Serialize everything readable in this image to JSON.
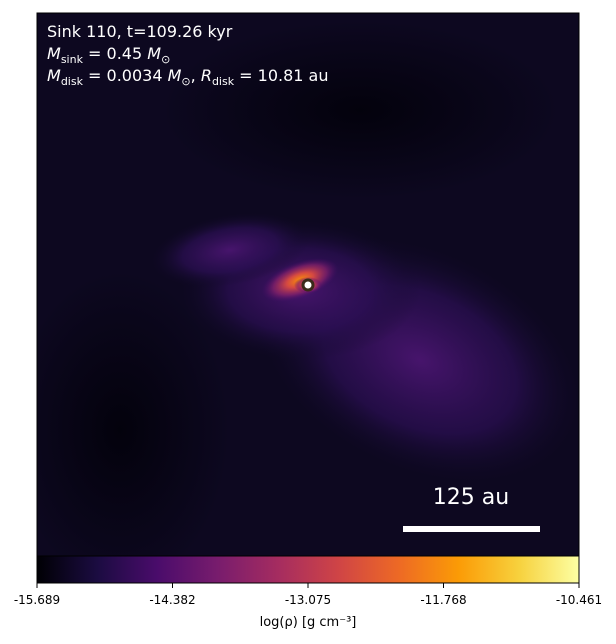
{
  "chart_data": {
    "type": "heatmap",
    "annotations": [
      [
        {
          "text": "Sink 110, t=109.26 kyr",
          "style": "normal"
        }
      ],
      [
        {
          "text": "M",
          "style": "italic"
        },
        {
          "text": "sink",
          "style": "sub"
        },
        {
          "text": " = 0.45 ",
          "style": "normal"
        },
        {
          "text": "M",
          "style": "italic"
        },
        {
          "text": "⊙",
          "style": "sub"
        }
      ],
      [
        {
          "text": "M",
          "style": "italic"
        },
        {
          "text": "disk",
          "style": "sub"
        },
        {
          "text": " = 0.0034 ",
          "style": "normal"
        },
        {
          "text": "M",
          "style": "italic"
        },
        {
          "text": "⊙",
          "style": "sub"
        },
        {
          "text": ", ",
          "style": "normal"
        },
        {
          "text": "R",
          "style": "italic"
        },
        {
          "text": "disk",
          "style": "sub"
        },
        {
          "text": " = 10.81 au",
          "style": "normal"
        }
      ]
    ],
    "scale_bar_label": "125 au",
    "colormap": "inferno",
    "colorbar_label": "log(ρ) [g cm⁻³]",
    "clim": [
      -15.689,
      -10.461
    ],
    "cticks": [
      -15.689,
      -14.382,
      -13.075,
      -11.768,
      -10.461
    ]
  }
}
